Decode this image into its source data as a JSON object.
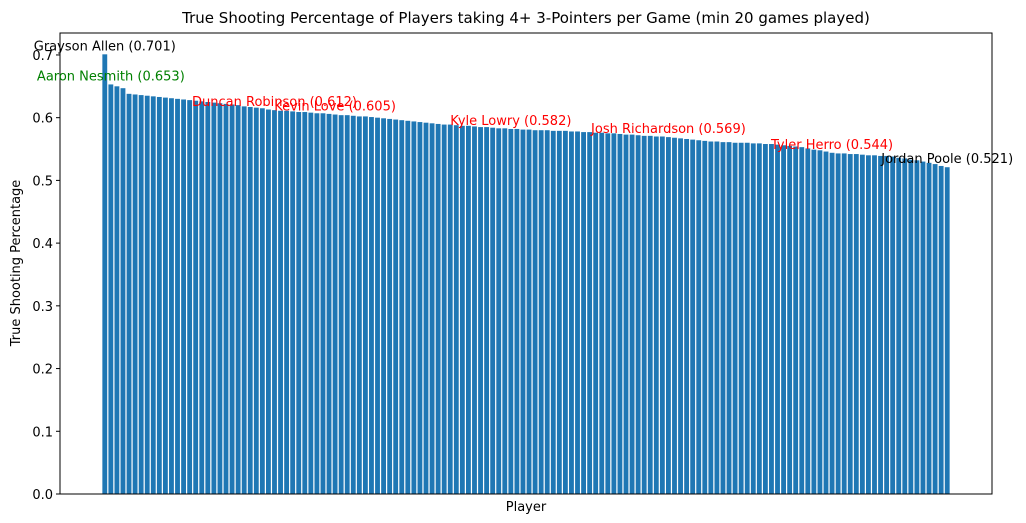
{
  "chart_data": {
    "type": "bar",
    "title": "True Shooting Percentage of Players taking 4+ 3-Pointers per Game (min 20 games played)",
    "x_label": "Player",
    "y_label": "True Shooting Percentage",
    "color": "#1f77b4",
    "values": [
      0.701,
      0.653,
      0.65,
      0.647,
      0.638,
      0.637,
      0.636,
      0.635,
      0.634,
      0.633,
      0.632,
      0.631,
      0.63,
      0.629,
      0.628,
      0.627,
      0.626,
      0.625,
      0.624,
      0.623,
      0.622,
      0.621,
      0.62,
      0.618,
      0.617,
      0.616,
      0.615,
      0.613,
      0.612,
      0.611,
      0.611,
      0.61,
      0.609,
      0.609,
      0.608,
      0.607,
      0.607,
      0.606,
      0.605,
      0.604,
      0.604,
      0.603,
      0.602,
      0.602,
      0.601,
      0.6,
      0.599,
      0.598,
      0.597,
      0.596,
      0.595,
      0.594,
      0.593,
      0.592,
      0.591,
      0.59,
      0.589,
      0.589,
      0.588,
      0.587,
      0.587,
      0.586,
      0.585,
      0.585,
      0.584,
      0.583,
      0.583,
      0.582,
      0.582,
      0.581,
      0.581,
      0.58,
      0.58,
      0.58,
      0.579,
      0.579,
      0.579,
      0.578,
      0.578,
      0.577,
      0.577,
      0.576,
      0.576,
      0.575,
      0.575,
      0.574,
      0.573,
      0.573,
      0.572,
      0.571,
      0.571,
      0.57,
      0.57,
      0.569,
      0.568,
      0.567,
      0.566,
      0.565,
      0.564,
      0.563,
      0.562,
      0.562,
      0.561,
      0.561,
      0.56,
      0.56,
      0.56,
      0.559,
      0.559,
      0.558,
      0.558,
      0.557,
      0.556,
      0.555,
      0.554,
      0.553,
      0.551,
      0.549,
      0.548,
      0.546,
      0.544,
      0.543,
      0.543,
      0.542,
      0.542,
      0.541,
      0.54,
      0.54,
      0.539,
      0.539,
      0.538,
      0.536,
      0.535,
      0.533,
      0.532,
      0.53,
      0.528,
      0.526,
      0.523,
      0.521
    ],
    "ylim": [
      0,
      0.735
    ],
    "yticks": [
      {
        "value": 0,
        "label": "0.0"
      },
      0.1,
      0.2,
      0.3,
      0.4,
      0.5,
      0.6,
      0.7
    ],
    "annotations": [
      {
        "text": "Grayson Allen (0.701)",
        "index": 0,
        "color": "black"
      },
      {
        "text": "Aaron Nesmith (0.653)",
        "index": 1,
        "color": "green"
      },
      {
        "text": "Duncan Robinson (0.612)",
        "index": 28,
        "color": "red"
      },
      {
        "text": "Kevin Love (0.605)",
        "index": 38,
        "color": "red"
      },
      {
        "text": "Kyle Lowry (0.582)",
        "index": 67,
        "color": "red"
      },
      {
        "text": "Josh Richardson (0.569)",
        "index": 93,
        "color": "red"
      },
      {
        "text": "Tyler Herro (0.544)",
        "index": 120,
        "color": "red"
      },
      {
        "text": "Jordan Poole (0.521)",
        "index": 139,
        "color": "black"
      }
    ]
  }
}
